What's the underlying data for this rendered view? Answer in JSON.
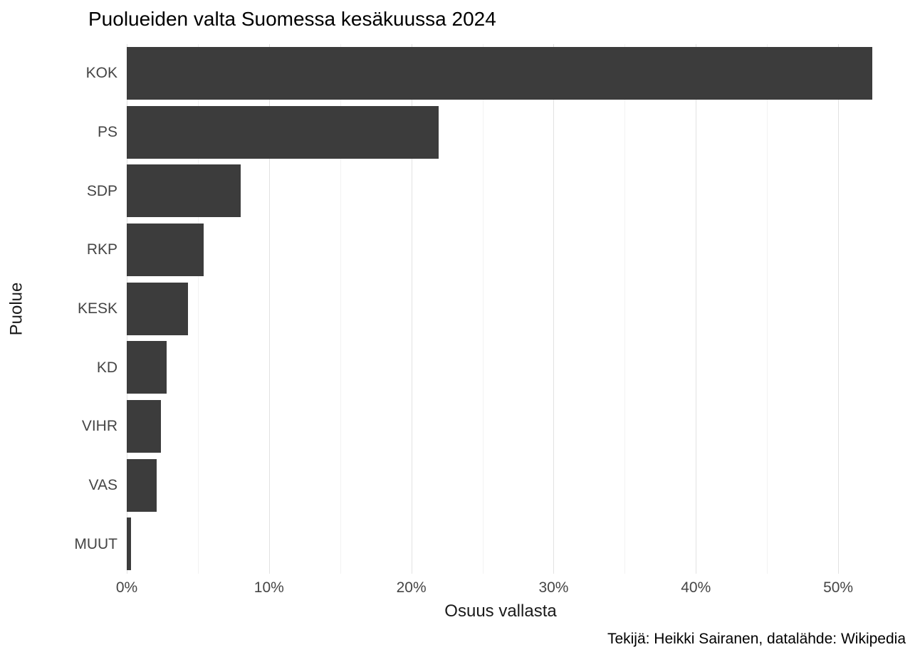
{
  "chart_data": {
    "type": "bar",
    "orientation": "horizontal",
    "title": "Puolueiden valta Suomessa kesäkuussa 2024",
    "xlabel": "Osuus vallasta",
    "ylabel": "Puolue",
    "caption": "Tekijä: Heikki Sairanen, datalähde: Wikipedia",
    "categories": [
      "KOK",
      "PS",
      "SDP",
      "RKP",
      "KESK",
      "KD",
      "VIHR",
      "VAS",
      "MUUT"
    ],
    "values": [
      52.4,
      21.9,
      8.0,
      5.4,
      4.3,
      2.8,
      2.4,
      2.1,
      0.3
    ],
    "value_unit": "%",
    "xlim": [
      0,
      55
    ],
    "x_ticks": [
      0,
      10,
      20,
      30,
      40,
      50
    ],
    "x_tick_labels": [
      "0%",
      "10%",
      "20%",
      "30%",
      "40%",
      "50%"
    ],
    "grid": true,
    "legend": "none",
    "bar_color": "#3C3C3C",
    "grid_major_color": "#E2E2E2",
    "grid_minor_color": "#F2F2F2",
    "background_color": "#FFFFFF"
  }
}
